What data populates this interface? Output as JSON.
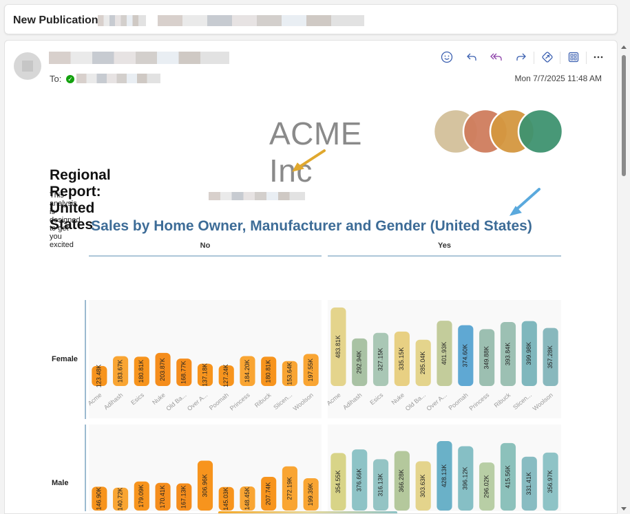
{
  "subject": {
    "label": "New Publication:"
  },
  "message": {
    "to_label": "To:",
    "timestamp": "Mon 7/7/2025 11:48 AM",
    "toolbar": [
      "smiley-icon",
      "reply-icon",
      "reply-all-icon",
      "forward-icon",
      "share-icon",
      "apps-icon",
      "more-icon"
    ]
  },
  "report": {
    "logo_text": "ACME Inc",
    "logo_colors": [
      "#d3c09a",
      "#cf7c5d",
      "#d4973f",
      "#3e9270"
    ],
    "title": "Regional Report: United States",
    "description": "This analysis is designed to get you excited",
    "arrow_color_1": "#e0a82e",
    "arrow_color_2": "#5aa9dd"
  },
  "chart_data": {
    "type": "bar",
    "title": "Sales by Home Owner, Manufacturer and Gender (United States)",
    "column_facets": [
      "No",
      "Yes"
    ],
    "row_facets": [
      "Female",
      "Male"
    ],
    "categories": [
      "Acme",
      "Adihash",
      "Esics",
      "Nuke",
      "Old Ba...",
      "Over A...",
      "Poomah",
      "Princess",
      "Ribuck",
      "Slicen...",
      "Woolson"
    ],
    "panels": [
      {
        "row": "Female",
        "column": "No",
        "values": [
          123.48,
          183.67,
          180.81,
          203.87,
          168.77,
          137.18,
          127.24,
          184.2,
          180.81,
          153.64,
          197.55
        ],
        "labels": [
          "123.48K",
          "183.67K",
          "180.81K",
          "203.87K",
          "168.77K",
          "137.18K",
          "127.24K",
          "184.20K",
          "180.81K",
          "153.64K",
          "197.55K"
        ]
      },
      {
        "row": "Female",
        "column": "Yes",
        "values": [
          483.81,
          292.94,
          327.15,
          335.15,
          285.04,
          401.93,
          374.6,
          349.88,
          393.84,
          399.98,
          357.28
        ],
        "labels": [
          "483.81K",
          "292.94K",
          "327.15K",
          "335.15K",
          "285.04K",
          "401.93K",
          "374.60K",
          "349.88K",
          "393.84K",
          "399.98K",
          "357.28K"
        ]
      },
      {
        "row": "Male",
        "column": "No",
        "values": [
          146.9,
          140.72,
          179.09,
          170.41,
          167.13,
          306.96,
          145.03,
          148.45,
          207.74,
          272.19,
          199.39
        ],
        "labels": [
          "146.90K",
          "140.72K",
          "179.09K",
          "170.41K",
          "167.13K",
          "306.96K",
          "145.03K",
          "148.45K",
          "207.74K",
          "272.19K",
          "199.39K"
        ]
      },
      {
        "row": "Male",
        "column": "Yes",
        "values": [
          354.55,
          376.66,
          316.13,
          366.28,
          303.63,
          428.13,
          396.12,
          296.02,
          415.56,
          331.41,
          356.97
        ],
        "labels": [
          "354.55K",
          "376.66K",
          "316.13K",
          "366.28K",
          "303.63K",
          "428.13K",
          "396.12K",
          "296.02K",
          "415.56K",
          "331.41K",
          "356.97K"
        ]
      }
    ],
    "colors": {
      "no": [
        "#f7941d",
        "#f9a533",
        "#f7941d",
        "#f58d1c",
        "#f58d1c",
        "#f7941d",
        "#f7941d",
        "#f9a533",
        "#f7941d",
        "#f9a533",
        "#f9a533"
      ],
      "yes_female": [
        "#e4d48c",
        "#a9c2a4",
        "#a9c7b5",
        "#e8d083",
        "#e4d48c",
        "#c3cc9b",
        "#5fa8d3",
        "#9cbfb1",
        "#9cc0b3",
        "#7fb7bd",
        "#88b8bd"
      ],
      "yes_male": [
        "#d8d488",
        "#8ec3c6",
        "#94c4c4",
        "#b4c89c",
        "#e4d48c",
        "#6ab1c8",
        "#86bfc5",
        "#b8cea5",
        "#8cc1bb",
        "#88bcc2",
        "#8ec3c6"
      ]
    },
    "ylim": [
      0,
      500
    ]
  }
}
